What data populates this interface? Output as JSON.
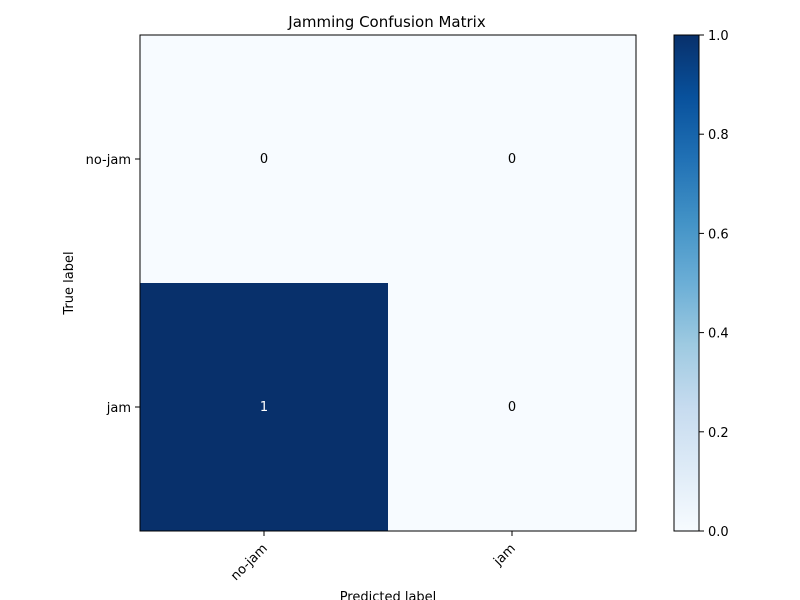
{
  "chart_data": {
    "type": "heatmap",
    "title": "Jamming Confusion Matrix",
    "xlabel": "Predicted label",
    "ylabel": "True label",
    "x_categories": [
      "no-jam",
      "jam"
    ],
    "y_categories": [
      "no-jam",
      "jam"
    ],
    "values": [
      [
        0,
        0
      ],
      [
        1,
        0
      ]
    ],
    "colormap": "Blues",
    "color_low": "#f7fbff",
    "color_high": "#08306b",
    "colorbar": {
      "range": [
        0.0,
        1.0
      ],
      "ticks": [
        "0.0",
        "0.2",
        "0.4",
        "0.6",
        "0.8",
        "1.0"
      ]
    },
    "grid": false,
    "x_tick_rotation_deg": 45
  }
}
